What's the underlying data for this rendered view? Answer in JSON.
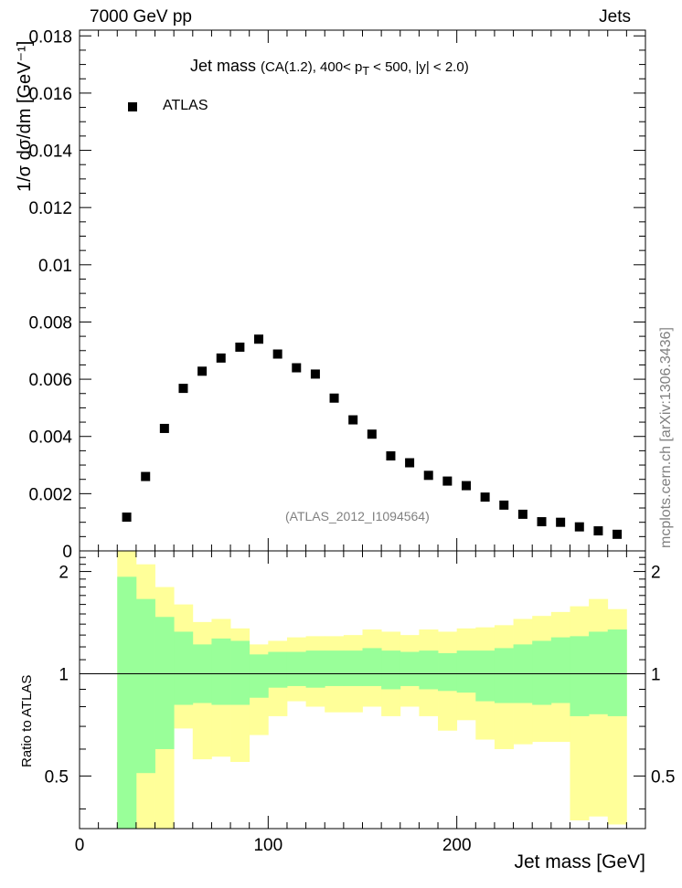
{
  "header": {
    "left": "7000 GeV pp",
    "right": "Jets"
  },
  "side_credit": "mcplots.cern.ch [arXiv:1306.3436]",
  "chart_data": [
    {
      "type": "scatter",
      "title": "Jet mass",
      "subtitle": "(CA(1.2), 400< p_T < 500, |y| < 2.0)",
      "subtitle_parts": {
        "pre": "(CA(1.2), 400< p",
        "sub": "T",
        "post": " < 500, |y| < 2.0)"
      },
      "ylabel": "1/σ dσ/dm [GeV⁻¹]",
      "xlabel": "Jet mass [GeV]",
      "xlim": [
        0,
        300
      ],
      "ylim": [
        0,
        0.0182
      ],
      "y_ticks": [
        0,
        0.002,
        0.004,
        0.006,
        0.008,
        0.01,
        0.012,
        0.014,
        0.016,
        0.018
      ],
      "y_tick_labels": [
        "0",
        "0.002",
        "0.004",
        "0.006",
        "0.008",
        "0.01",
        "0.012",
        "0.014",
        "0.016",
        "0.018"
      ],
      "legend": {
        "label": "ATLAS",
        "position": "top-left"
      },
      "annotation": "(ATLAS_2012_I1094564)",
      "series": [
        {
          "name": "ATLAS",
          "x": [
            25,
            35,
            45,
            55,
            65,
            75,
            85,
            95,
            105,
            115,
            125,
            135,
            145,
            155,
            165,
            175,
            185,
            195,
            205,
            215,
            225,
            235,
            245,
            255,
            265,
            275,
            285
          ],
          "y": [
            0.00118,
            0.0026,
            0.00428,
            0.00568,
            0.00628,
            0.00674,
            0.00712,
            0.0074,
            0.00688,
            0.0064,
            0.00618,
            0.00534,
            0.00458,
            0.00408,
            0.00332,
            0.00308,
            0.00264,
            0.00244,
            0.00228,
            0.00188,
            0.0016,
            0.00128,
            0.00102,
            0.001,
            0.00084,
            0.0007,
            0.00058
          ]
        }
      ]
    },
    {
      "type": "area",
      "ylabel": "Ratio to ATLAS",
      "xlim": [
        0,
        300
      ],
      "ylim": [
        0.35,
        2.3
      ],
      "log_scale_y": true,
      "x_ticks": [
        0,
        100,
        200
      ],
      "x_tick_labels": [
        "0",
        "100",
        "200"
      ],
      "y_ticks": [
        0.5,
        1,
        2
      ],
      "y_tick_labels": [
        "0.5",
        "1",
        "2"
      ],
      "reference_line": 1,
      "bin_edges": [
        20,
        30,
        40,
        50,
        60,
        70,
        80,
        90,
        100,
        110,
        120,
        130,
        140,
        150,
        160,
        170,
        180,
        190,
        200,
        210,
        220,
        230,
        240,
        250,
        260,
        270,
        280,
        290
      ],
      "bands": [
        {
          "color": "#ffff99",
          "upper": [
            2.3,
            2.1,
            1.8,
            1.6,
            1.42,
            1.45,
            1.36,
            1.22,
            1.25,
            1.28,
            1.29,
            1.29,
            1.3,
            1.35,
            1.33,
            1.3,
            1.35,
            1.33,
            1.36,
            1.37,
            1.39,
            1.45,
            1.48,
            1.52,
            1.58,
            1.66,
            1.55,
            1.92
          ],
          "lower": [
            0.35,
            0.35,
            0.35,
            0.69,
            0.56,
            0.57,
            0.55,
            0.66,
            0.75,
            0.83,
            0.8,
            0.77,
            0.77,
            0.8,
            0.75,
            0.8,
            0.75,
            0.68,
            0.73,
            0.64,
            0.6,
            0.62,
            0.63,
            0.63,
            0.37,
            0.38,
            0.36,
            0.36
          ]
        },
        {
          "color": "#99ff99",
          "upper": [
            1.93,
            1.66,
            1.47,
            1.33,
            1.22,
            1.27,
            1.25,
            1.14,
            1.16,
            1.16,
            1.17,
            1.17,
            1.17,
            1.19,
            1.17,
            1.16,
            1.17,
            1.15,
            1.17,
            1.17,
            1.19,
            1.22,
            1.25,
            1.28,
            1.29,
            1.33,
            1.35,
            1.54
          ],
          "lower": [
            0.35,
            0.51,
            0.6,
            0.81,
            0.82,
            0.81,
            0.81,
            0.85,
            0.91,
            0.92,
            0.91,
            0.92,
            0.92,
            0.92,
            0.9,
            0.92,
            0.9,
            0.89,
            0.88,
            0.83,
            0.82,
            0.82,
            0.81,
            0.82,
            0.75,
            0.76,
            0.75,
            0.7
          ]
        }
      ]
    }
  ],
  "colors": {
    "yellow_band": "#ffff99",
    "green_band": "#99ff99",
    "marker": "#000000",
    "note": "#808080"
  }
}
